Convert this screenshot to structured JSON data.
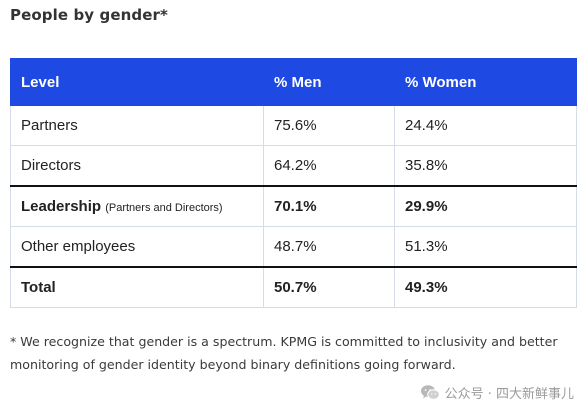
{
  "heading": "People by gender*",
  "table": {
    "headers": [
      "Level",
      "% Men",
      "% Women"
    ],
    "rows": [
      {
        "level": "Partners",
        "level_note": "",
        "men": "75.6%",
        "women": "24.4%"
      },
      {
        "level": "Directors",
        "level_note": "",
        "men": "64.2%",
        "women": "35.8%"
      },
      {
        "level": "Leadership",
        "level_note": "(Partners and Directors)",
        "men": "70.1%",
        "women": "29.9%"
      },
      {
        "level": "Other employees",
        "level_note": "",
        "men": "48.7%",
        "women": "51.3%"
      },
      {
        "level": "Total",
        "level_note": "",
        "men": "50.7%",
        "women": "49.3%"
      }
    ]
  },
  "footnote": "* We recognize that gender is a spectrum. KPMG is committed to inclusivity and better monitoring of gender identity beyond binary definitions going forward.",
  "watermark": {
    "text": "公众号 · 四大新鲜事儿",
    "icon": "wechat-icon"
  },
  "colors": {
    "header_bg": "#1e49e2",
    "header_text": "#ffffff",
    "row_border": "#d6dbe8",
    "rule": "#111111"
  }
}
